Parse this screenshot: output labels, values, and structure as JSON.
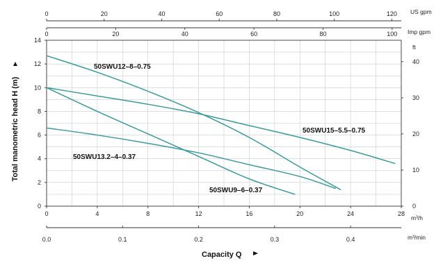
{
  "chart_data": {
    "type": "line",
    "x": {
      "label": "Capacity Q",
      "unit": "m³/h",
      "range": [
        0,
        28
      ],
      "ticks": [
        0,
        4,
        8,
        12,
        16,
        20,
        24,
        28
      ]
    },
    "x_min": {
      "unit": "m³/min",
      "ticks": [
        "0.0",
        "0.1",
        "0.2",
        "0.3",
        "0.4"
      ],
      "values": [
        0,
        0.1,
        0.2,
        0.3,
        0.4
      ]
    },
    "x_usgpm": {
      "unit": "US gpm",
      "ticks": [
        0,
        20,
        40,
        60,
        80,
        100,
        120
      ]
    },
    "x_impgpm": {
      "unit": "Imp gpm",
      "ticks": [
        0,
        20,
        40,
        60,
        80,
        100
      ]
    },
    "y": {
      "label": "Total manometric head H (m)",
      "range": [
        0,
        14
      ],
      "ticks": [
        0,
        2,
        4,
        6,
        8,
        10,
        12,
        14
      ]
    },
    "y_ft": {
      "unit": "ft",
      "ticks": [
        0,
        10,
        20,
        30,
        40
      ]
    },
    "grid": true,
    "series": [
      {
        "name": "50SWU12–8–0.75",
        "x": [
          0,
          4,
          8,
          12,
          16,
          20,
          23.2
        ],
        "y": [
          12.7,
          11.3,
          9.7,
          7.9,
          5.8,
          3.3,
          1.4
        ]
      },
      {
        "name": "50SWU15–5.5–0.75",
        "x": [
          0,
          4,
          8,
          12,
          16,
          20,
          24,
          27.5
        ],
        "y": [
          10.0,
          9.3,
          8.6,
          7.8,
          6.8,
          5.8,
          4.7,
          3.6
        ]
      },
      {
        "name": "50SWU13.2–4–0.37",
        "x": [
          0,
          4,
          8,
          12,
          16,
          20,
          22.8
        ],
        "y": [
          6.6,
          6.0,
          5.3,
          4.5,
          3.5,
          2.5,
          1.5
        ]
      },
      {
        "name": "50SWU9–6–0.37",
        "x": [
          0,
          4,
          8,
          12,
          16,
          19.6
        ],
        "y": [
          10.0,
          8.0,
          6.1,
          4.2,
          2.3,
          1.0
        ]
      }
    ],
    "line_color": "#3a9a9b"
  }
}
